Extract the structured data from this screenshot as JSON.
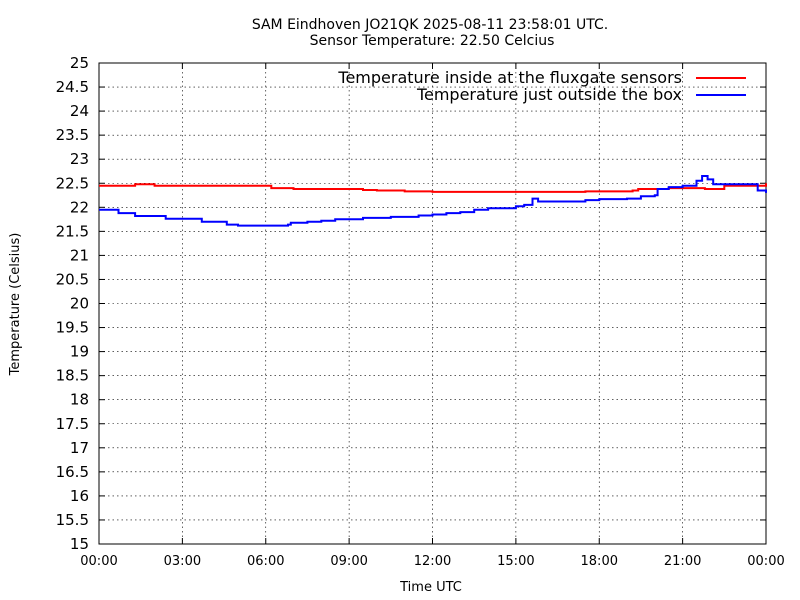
{
  "chart_data": {
    "type": "line",
    "title": "SAM Eindhoven JO21QK 2025-08-11 23:58:01 UTC.",
    "subtitle": "Sensor Temperature: 22.50 Celcius",
    "xlabel": "Time UTC",
    "ylabel": "Temperature (Celsius)",
    "x_range_hours": [
      0,
      24
    ],
    "ylim": [
      15,
      25
    ],
    "grid": true,
    "legend_position": "top-right",
    "x_ticks": [
      {
        "value": 0,
        "label": "00:00"
      },
      {
        "value": 3,
        "label": "03:00"
      },
      {
        "value": 6,
        "label": "06:00"
      },
      {
        "value": 9,
        "label": "09:00"
      },
      {
        "value": 12,
        "label": "12:00"
      },
      {
        "value": 15,
        "label": "15:00"
      },
      {
        "value": 18,
        "label": "18:00"
      },
      {
        "value": 21,
        "label": "21:00"
      },
      {
        "value": 24,
        "label": "00:00"
      }
    ],
    "y_ticks": [
      {
        "value": 15,
        "label": "15"
      },
      {
        "value": 15.5,
        "label": "15.5"
      },
      {
        "value": 16,
        "label": "16"
      },
      {
        "value": 16.5,
        "label": "16.5"
      },
      {
        "value": 17,
        "label": "17"
      },
      {
        "value": 17.5,
        "label": "17.5"
      },
      {
        "value": 18,
        "label": "18"
      },
      {
        "value": 18.5,
        "label": "18.5"
      },
      {
        "value": 19,
        "label": "19"
      },
      {
        "value": 19.5,
        "label": "19.5"
      },
      {
        "value": 20,
        "label": "20"
      },
      {
        "value": 20.5,
        "label": "20.5"
      },
      {
        "value": 21,
        "label": "21"
      },
      {
        "value": 21.5,
        "label": "21.5"
      },
      {
        "value": 22,
        "label": "22"
      },
      {
        "value": 22.5,
        "label": "22.5"
      },
      {
        "value": 23,
        "label": "23"
      },
      {
        "value": 23.5,
        "label": "23.5"
      },
      {
        "value": 24,
        "label": "24"
      },
      {
        "value": 24.5,
        "label": "24.5"
      },
      {
        "value": 25,
        "label": "25"
      }
    ],
    "series": [
      {
        "name": "Temperature inside at the fluxgate sensors",
        "color": "#ff0000",
        "x": [
          0.0,
          1.2,
          1.3,
          2.0,
          3.0,
          4.0,
          5.0,
          6.0,
          6.2,
          7.0,
          8.0,
          9.0,
          9.5,
          10.0,
          11.0,
          12.0,
          13.0,
          14.0,
          15.0,
          16.0,
          17.0,
          17.5,
          18.0,
          19.2,
          19.4,
          20.0,
          20.5,
          21.0,
          21.8,
          22.5,
          23.0,
          23.5,
          24.0
        ],
        "y": [
          22.45,
          22.45,
          22.48,
          22.45,
          22.45,
          22.45,
          22.45,
          22.45,
          22.4,
          22.38,
          22.38,
          22.38,
          22.36,
          22.35,
          22.33,
          22.32,
          22.32,
          22.32,
          22.32,
          22.32,
          22.32,
          22.33,
          22.33,
          22.35,
          22.38,
          22.38,
          22.4,
          22.4,
          22.38,
          22.45,
          22.45,
          22.45,
          22.5
        ]
      },
      {
        "name": "Temperature just outside the box",
        "color": "#0000ff",
        "x": [
          0.0,
          0.6,
          0.7,
          1.2,
          1.3,
          2.3,
          2.4,
          3.6,
          3.7,
          4.5,
          4.6,
          5.0,
          5.5,
          6.0,
          6.8,
          6.9,
          7.5,
          8.0,
          8.5,
          9.0,
          9.5,
          10.0,
          10.5,
          11.0,
          11.5,
          12.0,
          12.5,
          13.0,
          13.5,
          14.0,
          14.5,
          15.0,
          15.3,
          15.6,
          15.8,
          16.5,
          17.0,
          17.5,
          18.0,
          18.5,
          19.0,
          19.5,
          20.0,
          20.1,
          20.5,
          21.0,
          21.5,
          21.7,
          21.9,
          22.1,
          22.5,
          23.0,
          23.6,
          23.7,
          24.0
        ],
        "y": [
          21.95,
          21.95,
          21.88,
          21.88,
          21.82,
          21.82,
          21.76,
          21.76,
          21.7,
          21.7,
          21.64,
          21.62,
          21.62,
          21.62,
          21.64,
          21.68,
          21.7,
          21.72,
          21.75,
          21.75,
          21.78,
          21.78,
          21.8,
          21.8,
          21.83,
          21.85,
          21.88,
          21.9,
          21.95,
          21.98,
          21.98,
          22.02,
          22.05,
          22.18,
          22.12,
          22.12,
          22.12,
          22.15,
          22.17,
          22.17,
          22.18,
          22.23,
          22.25,
          22.38,
          22.42,
          22.45,
          22.55,
          22.65,
          22.58,
          22.48,
          22.48,
          22.48,
          22.48,
          22.35,
          22.3
        ]
      }
    ]
  }
}
